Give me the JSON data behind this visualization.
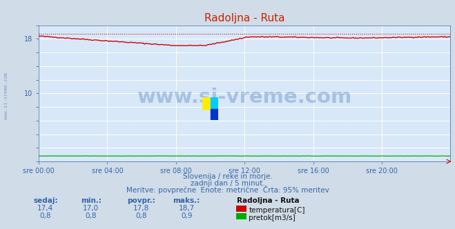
{
  "title": "Radoljna - Ruta",
  "bg_color": "#d0dce8",
  "plot_bg_color": "#d8e8f8",
  "grid_color_white": "#ffffff",
  "grid_color_pink": "#d8b8b8",
  "x_labels": [
    "sre 00:00",
    "sre 04:00",
    "sre 08:00",
    "sre 12:00",
    "sre 16:00",
    "sre 20:00"
  ],
  "x_ticks": [
    0,
    48,
    96,
    144,
    192,
    240
  ],
  "x_max": 288,
  "y_min": 0,
  "y_max": 20,
  "y_ticks_major": [
    10,
    18
  ],
  "y_ticks_all": [
    0,
    2,
    4,
    6,
    8,
    10,
    12,
    14,
    16,
    18,
    20
  ],
  "temp_color": "#cc0000",
  "flow_color": "#00aa00",
  "watermark_text": "www.si-vreme.com",
  "watermark_color": "#3366aa",
  "watermark_alpha": 0.3,
  "left_watermark": "www.si-vreme.com",
  "subtitle1": "Slovenija / reke in morje.",
  "subtitle2": "zadnji dan / 5 minut.",
  "subtitle3": "Meritve: povprečne  Enote: metrične  Črta: 95% meritev",
  "subtitle_color": "#3366aa",
  "table_headers": [
    "sedaj:",
    "min.:",
    "povpr.:",
    "maks.:"
  ],
  "table_row1": [
    "17,4",
    "17,0",
    "17,8",
    "18,7"
  ],
  "table_row2": [
    "0,8",
    "0,8",
    "0,8",
    "0,9"
  ],
  "legend_title": "Radoljna - Ruta",
  "legend_temp": "temperatura[C]",
  "legend_flow": "pretok[m3/s]",
  "label_color": "#3366aa",
  "tick_color": "#3366aa",
  "n_points": 289,
  "temp_dotted_level": 18.7,
  "logo_yellow": "#ffee00",
  "logo_cyan": "#00ccff",
  "logo_blue": "#0033cc"
}
